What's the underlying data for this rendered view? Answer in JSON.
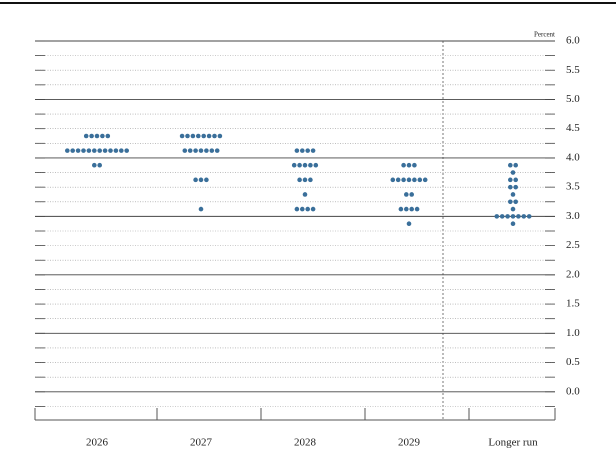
{
  "chart_data": {
    "type": "dot",
    "y_axis_label": "Percent",
    "categories": [
      "2026",
      "2027",
      "2028",
      "2029",
      "Longer run"
    ],
    "values": [
      [
        4.375,
        4.375,
        4.375,
        4.375,
        4.375,
        4.125,
        4.125,
        4.125,
        4.125,
        4.125,
        4.125,
        4.125,
        4.125,
        4.125,
        4.125,
        4.125,
        4.125,
        3.875,
        3.875
      ],
      [
        4.375,
        4.375,
        4.375,
        4.375,
        4.375,
        4.375,
        4.375,
        4.375,
        4.125,
        4.125,
        4.125,
        4.125,
        4.125,
        4.125,
        4.125,
        3.625,
        3.625,
        3.625,
        3.125
      ],
      [
        4.125,
        4.125,
        4.125,
        4.125,
        3.875,
        3.875,
        3.875,
        3.875,
        3.875,
        3.625,
        3.625,
        3.625,
        3.375,
        3.125,
        3.125,
        3.125,
        3.125
      ],
      [
        3.875,
        3.875,
        3.875,
        3.625,
        3.625,
        3.625,
        3.625,
        3.625,
        3.625,
        3.625,
        3.375,
        3.375,
        3.125,
        3.125,
        3.125,
        3.125,
        2.875
      ],
      [
        3.875,
        3.875,
        3.75,
        3.625,
        3.625,
        3.5,
        3.5,
        3.375,
        3.25,
        3.25,
        3.125,
        3,
        3,
        3,
        3,
        3,
        3,
        3,
        2.875
      ]
    ],
    "color": "#3a6f9a",
    "ylim": [
      -0.5,
      6
    ],
    "yticks": [
      {
        "value": 6,
        "label": "6.0"
      },
      5.5,
      {
        "value": 5,
        "label": "5.0"
      },
      4.5,
      {
        "value": 4,
        "label": "4.0"
      },
      3.5,
      {
        "value": 3,
        "label": "3.0"
      },
      2.5,
      {
        "value": 2,
        "label": "2.0"
      },
      1.5,
      {
        "value": 1,
        "label": "1.0"
      },
      0.5,
      {
        "value": 0,
        "label": "0.0"
      }
    ],
    "minor_yticks": [
      5.75,
      5.25,
      4.75,
      4.25,
      3.75,
      3.25,
      2.75,
      2.25,
      1.75,
      1.25,
      0.75,
      0.25,
      -0.25
    ]
  }
}
